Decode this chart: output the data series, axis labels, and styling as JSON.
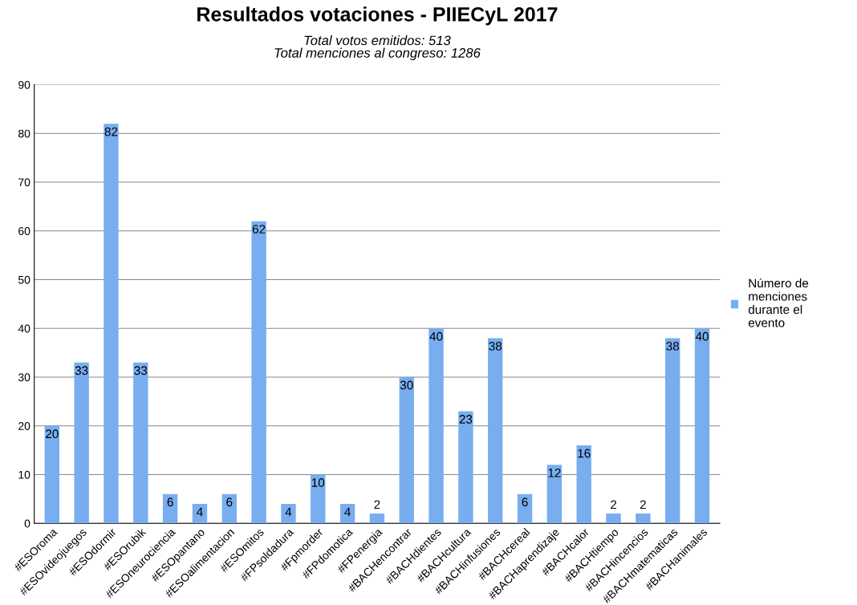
{
  "chart_data": {
    "type": "bar",
    "title": "Resultados votaciones - PIIECyL 2017",
    "subtitle": "Total votos emitidos: 513\nTotal menciones al congreso: 1286",
    "categories": [
      "#ESOroma",
      "#ESOvideojuegos",
      "#ESOdormir",
      "#ESOrubik",
      "#ESOneurociencia",
      "#ESOpantano",
      "#ESOalimentacion",
      "#ESOmitos",
      "#FPsoldadura",
      "#Fpmorder",
      "#FPdomotica",
      "#FPenergia",
      "#BACHencontrar",
      "#BACHdientes",
      "#BACHcultura",
      "#BACHinfusiones",
      "#BACHcereal",
      "#BACHaprendizaje",
      "#BACHcalor",
      "#BACHtiempo",
      "#BACHincencios",
      "#BACHmatematicas",
      "#BACHanimales"
    ],
    "series": [
      {
        "name": "Número de menciones durante el evento",
        "color": "#78aef0",
        "values": [
          20,
          33,
          82,
          33,
          6,
          4,
          6,
          62,
          4,
          10,
          4,
          2,
          30,
          40,
          23,
          38,
          6,
          12,
          16,
          2,
          2,
          38,
          40
        ]
      }
    ],
    "data_labels": true,
    "ylim": [
      0,
      90
    ],
    "yticks": [
      0,
      10,
      20,
      30,
      40,
      50,
      60,
      70,
      80,
      90
    ],
    "grid": "y",
    "legend": "right"
  }
}
